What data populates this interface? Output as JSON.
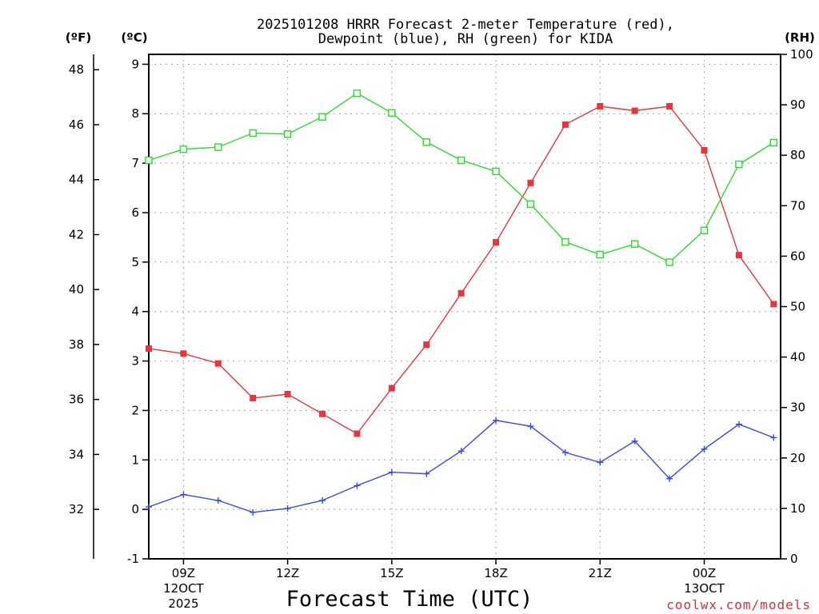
{
  "chart_data": {
    "type": "line",
    "title_line1": "2025101208 HRRR Forecast 2-meter Temperature (red),",
    "title_line2": "Dewpoint (blue), RH (green) for KIDA",
    "xlabel": "Forecast Time (UTC)",
    "credit": "coolwx.com/models",
    "credit_color": "#d0343c",
    "units": {
      "fahrenheit": "(ºF)",
      "celsius": "(ºC)",
      "rh": "(RH)"
    },
    "x_hours": [
      8,
      9,
      10,
      11,
      12,
      13,
      14,
      15,
      16,
      17,
      18,
      19,
      20,
      21,
      22,
      23,
      24,
      25,
      26
    ],
    "xlim": [
      8,
      26.2
    ],
    "x_ticks": [
      {
        "hour": 9,
        "label": "09Z",
        "sub1": "12OCT",
        "sub2": "2025"
      },
      {
        "hour": 12,
        "label": "12Z",
        "sub1": "",
        "sub2": ""
      },
      {
        "hour": 15,
        "label": "15Z",
        "sub1": "",
        "sub2": ""
      },
      {
        "hour": 18,
        "label": "18Z",
        "sub1": "",
        "sub2": ""
      },
      {
        "hour": 21,
        "label": "21Z",
        "sub1": "",
        "sub2": ""
      },
      {
        "hour": 24,
        "label": "00Z",
        "sub1": "13OCT",
        "sub2": ""
      }
    ],
    "celsius_axis": {
      "ylim": [
        -1,
        9.2
      ],
      "ticks": [
        -1,
        0,
        1,
        2,
        3,
        4,
        5,
        6,
        7,
        8,
        9
      ],
      "labels": [
        "-1",
        "0",
        "1",
        "2",
        "3",
        "4",
        "5",
        "6",
        "7",
        "8",
        "9"
      ]
    },
    "fahrenheit_axis": {
      "ticks": [
        32,
        34,
        36,
        38,
        40,
        42,
        44,
        46,
        48
      ],
      "labels": [
        "32",
        "34",
        "36",
        "38",
        "40",
        "42",
        "44",
        "46",
        "48"
      ]
    },
    "rh_axis": {
      "ylim": [
        0,
        100
      ],
      "ticks": [
        0,
        10,
        20,
        30,
        40,
        50,
        60,
        70,
        80,
        90,
        100
      ],
      "labels": [
        "0",
        "10",
        "20",
        "30",
        "40",
        "50",
        "60",
        "70",
        "80",
        "90",
        "100"
      ]
    },
    "series": [
      {
        "name": "2-meter Temperature",
        "axis": "celsius",
        "color": "#e8343c",
        "marker": "filled-square",
        "values": [
          3.25,
          3.15,
          2.95,
          2.25,
          2.33,
          1.93,
          1.53,
          2.45,
          3.33,
          4.37,
          5.4,
          6.6,
          7.78,
          8.15,
          8.06,
          8.15,
          7.26,
          5.14,
          4.15
        ]
      },
      {
        "name": "Dewpoint",
        "axis": "celsius",
        "color": "#3848e8",
        "marker": "plus",
        "values": [
          0.05,
          0.3,
          0.18,
          -0.06,
          0.02,
          0.18,
          0.48,
          0.75,
          0.72,
          1.18,
          1.8,
          1.68,
          1.15,
          0.95,
          1.38,
          0.62,
          1.22,
          1.72,
          1.45
        ]
      },
      {
        "name": "RH",
        "axis": "rh",
        "color": "#28dc28",
        "marker": "open-square",
        "values": [
          79,
          81.2,
          81.6,
          84.4,
          84.2,
          87.6,
          92.3,
          88.4,
          82.6,
          79,
          76.8,
          70.3,
          62.8,
          60.3,
          62.4,
          58.8,
          65.1,
          78.2,
          82.5
        ]
      }
    ]
  }
}
